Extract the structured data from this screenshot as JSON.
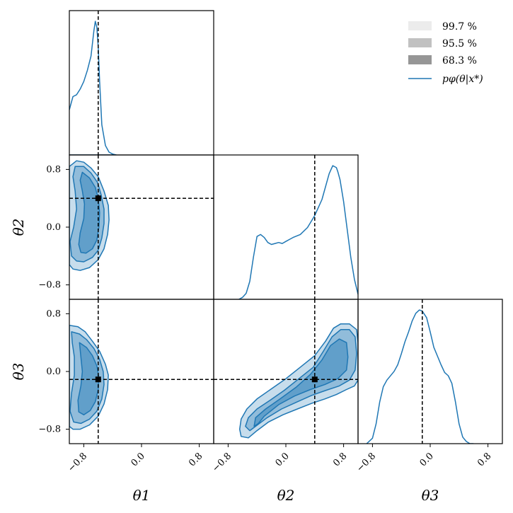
{
  "chart_data": {
    "type": "corner",
    "parameters": [
      "θ1",
      "θ2",
      "θ3"
    ],
    "axis_labels": [
      "θ1",
      "θ2",
      "θ3"
    ],
    "range": [
      -1.0,
      1.0
    ],
    "ticks": [
      -0.8,
      0.0,
      0.8
    ],
    "tick_labels": [
      "−0.8",
      "0.0",
      "0.8"
    ],
    "true_values": {
      "θ1": -0.6,
      "θ2": 0.4,
      "θ3": -0.11
    },
    "credible_levels": [
      "99.7 %",
      "95.5 %",
      "68.3 %"
    ],
    "legend_line_label": "pφ(θ|x*)",
    "legend": {
      "position": "top-right",
      "entries": [
        {
          "label": "99.7 %",
          "fill": "#ececec"
        },
        {
          "label": "95.5 %",
          "fill": "#c1c1c1"
        },
        {
          "label": "68.3 %",
          "fill": "#969696"
        }
      ]
    },
    "colors": {
      "line": "#1f77b4",
      "fill": "#1f77b4",
      "truth": "#000000"
    },
    "marginals": [
      {
        "param": "θ1",
        "x": [
          -1.0,
          -0.95,
          -0.9,
          -0.85,
          -0.8,
          -0.75,
          -0.7,
          -0.66,
          -0.64,
          -0.62,
          -0.6,
          -0.58,
          -0.55,
          -0.5,
          -0.45,
          -0.4,
          -0.35,
          -1.0
        ],
        "y": [
          0.48,
          0.62,
          0.64,
          0.7,
          0.78,
          0.9,
          1.05,
          1.32,
          1.42,
          1.36,
          1.15,
          0.78,
          0.32,
          0.1,
          0.03,
          0.01,
          0.0,
          0.0
        ]
      },
      {
        "param": "θ2",
        "x": [
          -0.65,
          -0.6,
          -0.55,
          -0.5,
          -0.45,
          -0.4,
          -0.35,
          -0.3,
          -0.25,
          -0.2,
          -0.15,
          -0.1,
          -0.05,
          0.0,
          0.05,
          0.1,
          0.2,
          0.3,
          0.4,
          0.5,
          0.6,
          0.65,
          0.7,
          0.72,
          0.75,
          0.8,
          0.85,
          0.9,
          0.95,
          1.0
        ],
        "y": [
          0.0,
          0.02,
          0.06,
          0.18,
          0.42,
          0.63,
          0.65,
          0.62,
          0.57,
          0.55,
          0.56,
          0.57,
          0.56,
          0.58,
          0.6,
          0.62,
          0.65,
          0.72,
          0.84,
          1.0,
          1.26,
          1.34,
          1.32,
          1.28,
          1.2,
          0.98,
          0.7,
          0.42,
          0.2,
          0.05
        ]
      },
      {
        "param": "θ3",
        "x": [
          -0.88,
          -0.8,
          -0.75,
          -0.7,
          -0.65,
          -0.6,
          -0.5,
          -0.45,
          -0.4,
          -0.35,
          -0.3,
          -0.25,
          -0.2,
          -0.15,
          -0.11,
          -0.05,
          0.0,
          0.05,
          0.1,
          0.15,
          0.2,
          0.25,
          0.3,
          0.35,
          0.4,
          0.45,
          0.5,
          0.55,
          0.6
        ],
        "y": [
          0.0,
          0.05,
          0.18,
          0.38,
          0.52,
          0.58,
          0.66,
          0.72,
          0.82,
          0.93,
          1.02,
          1.12,
          1.19,
          1.22,
          1.21,
          1.15,
          1.02,
          0.88,
          0.8,
          0.72,
          0.65,
          0.62,
          0.55,
          0.38,
          0.18,
          0.06,
          0.02,
          0.0,
          0.0
        ]
      }
    ],
    "joint": [
      {
        "params": [
          "θ1",
          "θ2"
        ],
        "contours": [
          {
            "level": "99.7 %",
            "points": [
              [
                -1.0,
                0.84
              ],
              [
                -0.9,
                0.92
              ],
              [
                -0.8,
                0.9
              ],
              [
                -0.7,
                0.82
              ],
              [
                -0.6,
                0.7
              ],
              [
                -0.52,
                0.5
              ],
              [
                -0.46,
                0.3
              ],
              [
                -0.45,
                0.1
              ],
              [
                -0.47,
                -0.1
              ],
              [
                -0.52,
                -0.3
              ],
              [
                -0.6,
                -0.45
              ],
              [
                -0.72,
                -0.56
              ],
              [
                -0.85,
                -0.6
              ],
              [
                -0.95,
                -0.58
              ],
              [
                -1.0,
                -0.52
              ]
            ]
          },
          {
            "level": "95.5 %",
            "points": [
              [
                -0.92,
                0.84
              ],
              [
                -0.8,
                0.84
              ],
              [
                -0.7,
                0.75
              ],
              [
                -0.61,
                0.62
              ],
              [
                -0.56,
                0.45
              ],
              [
                -0.52,
                0.25
              ],
              [
                -0.52,
                0.05
              ],
              [
                -0.55,
                -0.15
              ],
              [
                -0.6,
                -0.32
              ],
              [
                -0.68,
                -0.42
              ],
              [
                -0.8,
                -0.48
              ],
              [
                -0.9,
                -0.47
              ],
              [
                -0.97,
                -0.4
              ],
              [
                -0.99,
                -0.2
              ],
              [
                -0.94,
                0.0
              ],
              [
                -0.9,
                0.25
              ],
              [
                -0.92,
                0.5
              ],
              [
                -0.95,
                0.7
              ]
            ]
          },
          {
            "level": "68.3 %",
            "points": [
              [
                -0.82,
                0.76
              ],
              [
                -0.72,
                0.68
              ],
              [
                -0.64,
                0.55
              ],
              [
                -0.6,
                0.4
              ],
              [
                -0.58,
                0.2
              ],
              [
                -0.59,
                0.0
              ],
              [
                -0.62,
                -0.18
              ],
              [
                -0.68,
                -0.3
              ],
              [
                -0.77,
                -0.36
              ],
              [
                -0.84,
                -0.35
              ],
              [
                -0.87,
                -0.24
              ],
              [
                -0.85,
                -0.08
              ],
              [
                -0.8,
                0.12
              ],
              [
                -0.79,
                0.32
              ],
              [
                -0.82,
                0.5
              ],
              [
                -0.85,
                0.65
              ]
            ]
          }
        ]
      },
      {
        "params": [
          "θ1",
          "θ3"
        ],
        "contours": [
          {
            "level": "99.7 %",
            "points": [
              [
                -1.0,
                0.64
              ],
              [
                -0.88,
                0.62
              ],
              [
                -0.78,
                0.55
              ],
              [
                -0.68,
                0.42
              ],
              [
                -0.58,
                0.28
              ],
              [
                -0.5,
                0.1
              ],
              [
                -0.46,
                -0.05
              ],
              [
                -0.47,
                -0.25
              ],
              [
                -0.52,
                -0.45
              ],
              [
                -0.6,
                -0.62
              ],
              [
                -0.72,
                -0.74
              ],
              [
                -0.85,
                -0.8
              ],
              [
                -0.95,
                -0.8
              ],
              [
                -1.0,
                -0.76
              ]
            ]
          },
          {
            "level": "95.5 %",
            "points": [
              [
                -0.97,
                0.55
              ],
              [
                -0.86,
                0.52
              ],
              [
                -0.76,
                0.44
              ],
              [
                -0.66,
                0.32
              ],
              [
                -0.58,
                0.17
              ],
              [
                -0.53,
                0.0
              ],
              [
                -0.52,
                -0.18
              ],
              [
                -0.55,
                -0.38
              ],
              [
                -0.62,
                -0.55
              ],
              [
                -0.72,
                -0.66
              ],
              [
                -0.84,
                -0.72
              ],
              [
                -0.94,
                -0.7
              ],
              [
                -0.99,
                -0.55
              ],
              [
                -0.97,
                -0.3
              ],
              [
                -0.93,
                -0.05
              ],
              [
                -0.93,
                0.2
              ],
              [
                -0.96,
                0.4
              ]
            ]
          },
          {
            "level": "68.3 %",
            "points": [
              [
                -0.86,
                0.4
              ],
              [
                -0.76,
                0.33
              ],
              [
                -0.68,
                0.22
              ],
              [
                -0.62,
                0.08
              ],
              [
                -0.59,
                -0.08
              ],
              [
                -0.6,
                -0.25
              ],
              [
                -0.64,
                -0.42
              ],
              [
                -0.71,
                -0.54
              ],
              [
                -0.8,
                -0.6
              ],
              [
                -0.87,
                -0.56
              ],
              [
                -0.88,
                -0.4
              ],
              [
                -0.84,
                -0.2
              ],
              [
                -0.82,
                0.0
              ],
              [
                -0.84,
                0.2
              ]
            ]
          }
        ]
      },
      {
        "params": [
          "θ2",
          "θ3"
        ],
        "contours": [
          {
            "level": "99.7 %",
            "points": [
              [
                -0.64,
                -0.8
              ],
              [
                -0.62,
                -0.66
              ],
              [
                -0.54,
                -0.52
              ],
              [
                -0.4,
                -0.38
              ],
              [
                -0.2,
                -0.24
              ],
              [
                0.0,
                -0.1
              ],
              [
                0.2,
                0.06
              ],
              [
                0.4,
                0.22
              ],
              [
                0.55,
                0.42
              ],
              [
                0.66,
                0.6
              ],
              [
                0.76,
                0.66
              ],
              [
                0.88,
                0.66
              ],
              [
                0.98,
                0.58
              ],
              [
                1.0,
                0.4
              ],
              [
                1.0,
                -0.12
              ],
              [
                0.95,
                -0.2
              ],
              [
                0.84,
                -0.25
              ],
              [
                0.7,
                -0.32
              ],
              [
                0.54,
                -0.38
              ],
              [
                0.36,
                -0.44
              ],
              [
                0.16,
                -0.52
              ],
              [
                -0.04,
                -0.6
              ],
              [
                -0.24,
                -0.7
              ],
              [
                -0.4,
                -0.82
              ],
              [
                -0.52,
                -0.92
              ],
              [
                -0.62,
                -0.9
              ]
            ]
          },
          {
            "level": "95.5 %",
            "points": [
              [
                -0.56,
                -0.76
              ],
              [
                -0.52,
                -0.64
              ],
              [
                -0.4,
                -0.52
              ],
              [
                -0.22,
                -0.4
              ],
              [
                -0.02,
                -0.26
              ],
              [
                0.18,
                -0.1
              ],
              [
                0.38,
                0.06
              ],
              [
                0.52,
                0.28
              ],
              [
                0.64,
                0.48
              ],
              [
                0.76,
                0.58
              ],
              [
                0.88,
                0.58
              ],
              [
                0.96,
                0.48
              ],
              [
                0.98,
                0.25
              ],
              [
                0.96,
                0.02
              ],
              [
                0.88,
                -0.12
              ],
              [
                0.74,
                -0.2
              ],
              [
                0.56,
                -0.26
              ],
              [
                0.36,
                -0.33
              ],
              [
                0.16,
                -0.42
              ],
              [
                -0.06,
                -0.52
              ],
              [
                -0.26,
                -0.64
              ],
              [
                -0.42,
                -0.76
              ],
              [
                -0.5,
                -0.82
              ]
            ]
          },
          {
            "level": "68.3 %",
            "points": [
              [
                -0.44,
                -0.76
              ],
              [
                -0.42,
                -0.64
              ],
              [
                -0.28,
                -0.52
              ],
              [
                -0.08,
                -0.38
              ],
              [
                0.14,
                -0.22
              ],
              [
                0.34,
                -0.04
              ],
              [
                0.5,
                0.16
              ],
              [
                0.62,
                0.36
              ],
              [
                0.74,
                0.45
              ],
              [
                0.84,
                0.4
              ],
              [
                0.86,
                0.2
              ],
              [
                0.84,
                0.02
              ],
              [
                0.72,
                -0.1
              ],
              [
                0.54,
                -0.18
              ],
              [
                0.34,
                -0.25
              ],
              [
                0.12,
                -0.34
              ],
              [
                -0.1,
                -0.46
              ],
              [
                -0.3,
                -0.62
              ],
              [
                -0.38,
                -0.72
              ]
            ]
          }
        ]
      }
    ]
  }
}
